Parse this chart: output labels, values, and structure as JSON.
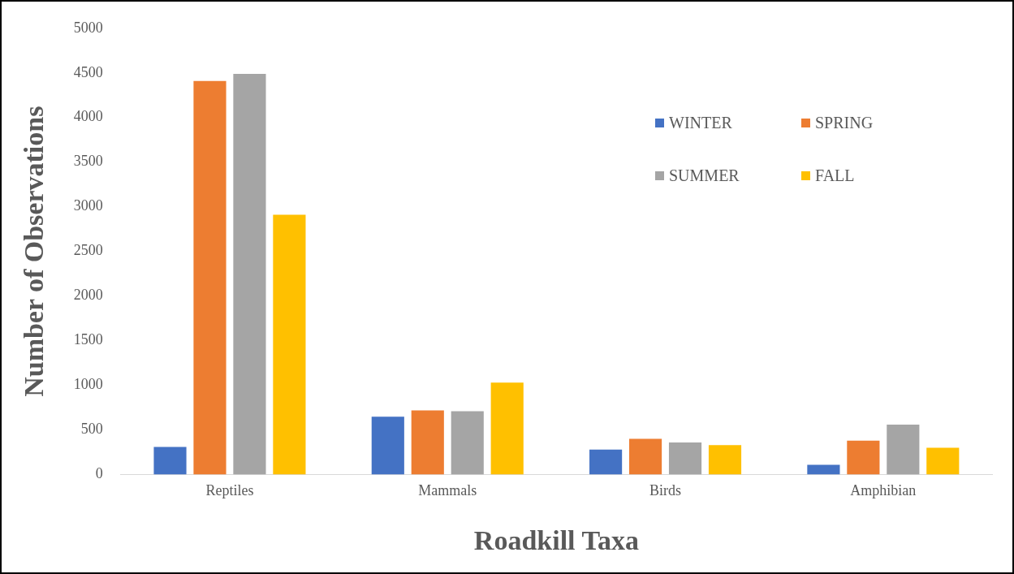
{
  "chart_data": {
    "type": "bar",
    "xlabel": "Roadkill Taxa",
    "ylabel": "Number of Observations",
    "categories": [
      "Reptiles",
      "Mammals",
      "Birds",
      "Amphibian"
    ],
    "series": [
      {
        "name": "WINTER",
        "color": "#4472c4",
        "values": [
          310,
          650,
          280,
          110
        ]
      },
      {
        "name": "SPRING",
        "color": "#ed7d31",
        "values": [
          4410,
          720,
          400,
          380
        ]
      },
      {
        "name": "SUMMER",
        "color": "#a5a5a5",
        "values": [
          4490,
          710,
          360,
          560
        ]
      },
      {
        "name": "FALL",
        "color": "#ffc000",
        "values": [
          2910,
          1030,
          330,
          300
        ]
      }
    ],
    "ylim": [
      0,
      5000
    ],
    "yticks": [
      0,
      500,
      1000,
      1500,
      2000,
      2500,
      3000,
      3500,
      4000,
      4500,
      5000
    ],
    "grid": false,
    "legend": "top right"
  }
}
